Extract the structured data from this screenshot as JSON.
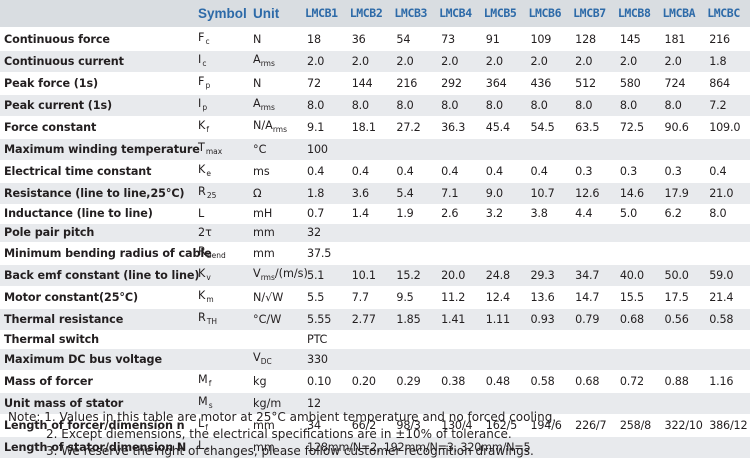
{
  "header": {
    "symbol": "Symbol",
    "unit": "Unit",
    "models": [
      "LMCB1",
      "LMCB2",
      "LMCB3",
      "LMCB4",
      "LMCB5",
      "LMCB6",
      "LMCB7",
      "LMCB8",
      "LMCBA",
      "LMCBC"
    ]
  },
  "rows": [
    {
      "param": "Continuous force",
      "sym": "F",
      "sub": "c",
      "unit": "N",
      "unit_sub": "",
      "values": [
        "18",
        "36",
        "54",
        "73",
        "91",
        "109",
        "128",
        "145",
        "181",
        "216"
      ]
    },
    {
      "param": "Continuous current",
      "sym": "I",
      "sub": "c",
      "unit": "A",
      "unit_sub": "rms",
      "values": [
        "2.0",
        "2.0",
        "2.0",
        "2.0",
        "2.0",
        "2.0",
        "2.0",
        "2.0",
        "2.0",
        "1.8"
      ]
    },
    {
      "param": "Peak force (1s)",
      "sym": "F",
      "sub": "p",
      "unit": "N",
      "unit_sub": "",
      "values": [
        "72",
        "144",
        "216",
        "292",
        "364",
        "436",
        "512",
        "580",
        "724",
        "864"
      ]
    },
    {
      "param": "Peak current (1s)",
      "sym": "I",
      "sub": "p",
      "unit": "A",
      "unit_sub": "rms",
      "values": [
        "8.0",
        "8.0",
        "8.0",
        "8.0",
        "8.0",
        "8.0",
        "8.0",
        "8.0",
        "8.0",
        "7.2"
      ]
    },
    {
      "param": "Force constant",
      "sym": "K",
      "sub": "f",
      "unit": "N/A",
      "unit_sub": "rms",
      "values": [
        "9.1",
        "18.1",
        "27.2",
        "36.3",
        "45.4",
        "54.5",
        "63.5",
        "72.5",
        "90.6",
        "109.0"
      ]
    },
    {
      "param": "Maximum winding temperature",
      "sym": "T",
      "sub": "max",
      "unit": "°C",
      "unit_sub": "",
      "merged": "100"
    },
    {
      "param": "Electrical time constant",
      "sym": "K",
      "sub": "e",
      "unit": "ms",
      "unit_sub": "",
      "values": [
        "0.4",
        "0.4",
        "0.4",
        "0.4",
        "0.4",
        "0.4",
        "0.3",
        "0.3",
        "0.3",
        "0.4"
      ]
    },
    {
      "param": "Resistance (line to line,25°C)",
      "sym": "R",
      "sub": "25",
      "unit": "Ω",
      "unit_sub": "",
      "values": [
        "1.8",
        "3.6",
        "5.4",
        "7.1",
        "9.0",
        "10.7",
        "12.6",
        "14.6",
        "17.9",
        "21.0"
      ]
    },
    {
      "param": "Inductance (line to line)",
      "sym": "L",
      "sub": "",
      "unit": "mH",
      "unit_sub": "",
      "values": [
        "0.7",
        "1.4",
        "1.9",
        "2.6",
        "3.2",
        "3.8",
        "4.4",
        "5.0",
        "6.2",
        "8.0"
      ]
    },
    {
      "param": "Pole pair pitch",
      "sym": "2τ",
      "sub": "",
      "unit": "mm",
      "unit_sub": "",
      "merged": "32"
    },
    {
      "param": "Minimum bending radius of  cable",
      "sym": "R",
      "sub": "bend",
      "unit": "mm",
      "unit_sub": "",
      "merged": "37.5"
    },
    {
      "param": "Back emf constant (line to line)",
      "sym": "K",
      "sub": "v",
      "unit": "V",
      "unit_sub": "rms",
      "unit_tail": "/(m/s)",
      "values": [
        "5.1",
        "10.1",
        "15.2",
        "20.0",
        "24.8",
        "29.3",
        "34.7",
        "40.0",
        "50.0",
        "59.0"
      ]
    },
    {
      "param": "Motor constant(25°C)",
      "sym": "K",
      "sub": "m",
      "unit": "N/√W",
      "unit_sub": "",
      "values": [
        "5.5",
        "7.7",
        "9.5",
        "11.2",
        "12.4",
        "13.6",
        "14.7",
        "15.5",
        "17.5",
        "21.4"
      ]
    },
    {
      "param": "Thermal resistance",
      "sym": "R",
      "sub": "TH",
      "unit": "°C/W",
      "unit_sub": "",
      "values": [
        "5.55",
        "2.77",
        "1.85",
        "1.41",
        "1.11",
        "0.93",
        "0.79",
        "0.68",
        "0.56",
        "0.58"
      ]
    },
    {
      "param": "Thermal switch",
      "sym": "",
      "sub": "",
      "unit": "",
      "unit_sub": "",
      "merged": "PTC"
    },
    {
      "param": "Maximum DC bus voltage",
      "sym": "",
      "sub": "",
      "unit": "V",
      "unit_sub": "DC",
      "merged": "330"
    },
    {
      "param": "Mass of forcer",
      "sym": "M",
      "sub": "f",
      "unit": "kg",
      "unit_sub": "",
      "values": [
        "0.10",
        "0.20",
        "0.29",
        "0.38",
        "0.48",
        "0.58",
        "0.68",
        "0.72",
        "0.88",
        "1.16"
      ]
    },
    {
      "param": "Unit mass of stator",
      "sym": "M",
      "sub": "s",
      "unit": "kg/m",
      "unit_sub": "",
      "merged": "12"
    },
    {
      "param": "Length of forcer/dimension n",
      "sym": "L",
      "sub": "f",
      "unit": "mm",
      "unit_sub": "",
      "values": [
        "34",
        "66/2",
        "98/3",
        "130/4",
        "162/5",
        "194/6",
        "226/7",
        "258/8",
        "322/10",
        "386/12"
      ]
    },
    {
      "param": "Length of stator/dimension N",
      "sym": "L",
      "sub": "s",
      "unit": "mm",
      "unit_sub": "",
      "merged": "128mm/N=2, 192mm/N=3, 320mm/N=5"
    }
  ],
  "notes": [
    "Note: 1. Values in this table are motor at 25°C ambient temperature and no forced cooling.",
    "2. Except diemensions, the electrical specifications are in ±10% of tolerance.",
    "3. We reserve the right of changes, please follow customer recognition drawings."
  ]
}
